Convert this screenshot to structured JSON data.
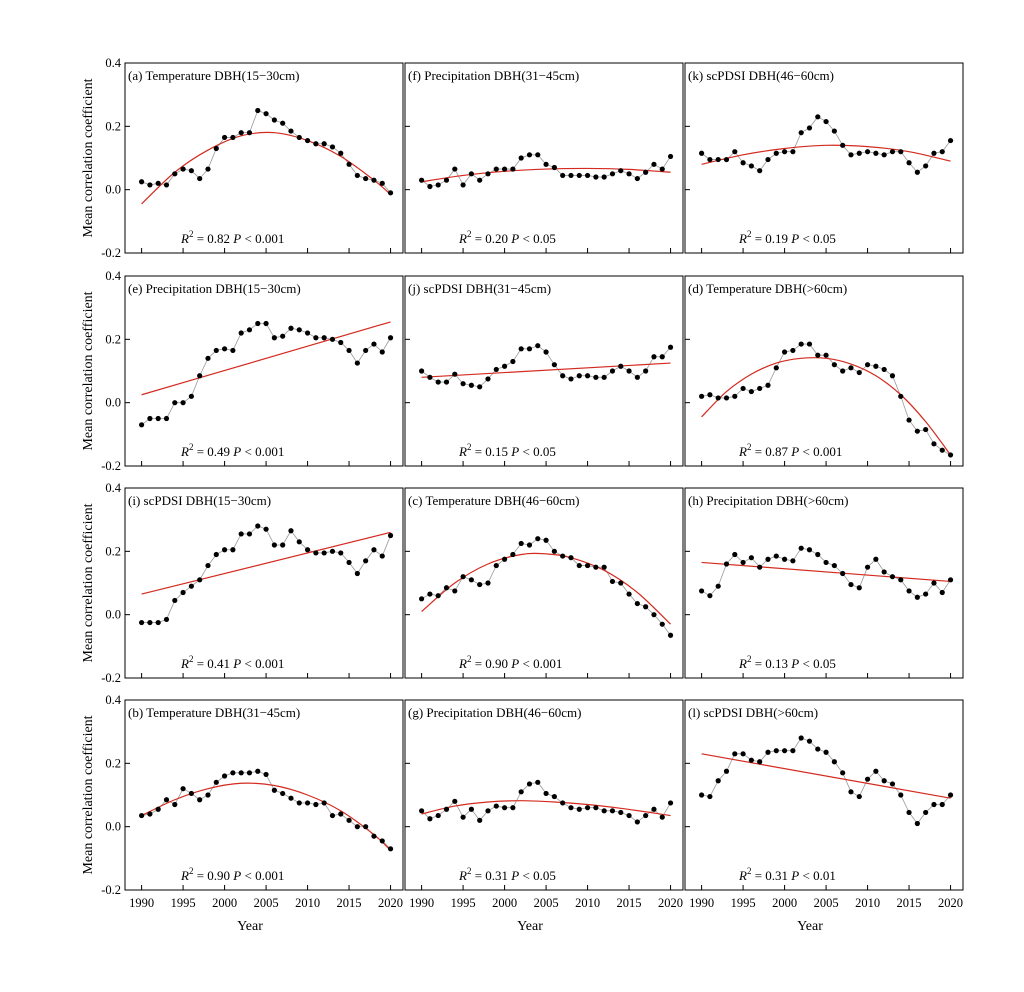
{
  "chart_data": {
    "type": "scatter",
    "layout": "4 rows x 3 columns grid of panels",
    "x_axis": {
      "label": "Year",
      "ticks": [
        1990,
        1995,
        2000,
        2005,
        2010,
        2015,
        2020
      ],
      "range": [
        1988,
        2021.5
      ]
    },
    "y_axis": {
      "label": "Mean correlation coefficient",
      "ticks": [
        -0.2,
        0.0,
        0.2,
        0.4
      ],
      "tick_labels": [
        "-0.2",
        "0.0",
        "0.2",
        "0.4"
      ],
      "range": [
        -0.2,
        0.4
      ]
    },
    "years": [
      1990,
      2020
    ],
    "colors": {
      "points": "#000000",
      "connector": "#9a9a9a",
      "fit_line": "#d42a1f"
    },
    "panels": [
      {
        "id": "a",
        "title": "(a) Temperature    DBH(15−30cm)",
        "fit_type": "quadratic",
        "r2_text": "R",
        "r2_value": " = 0.82",
        "p_text": "P < 0.001",
        "values": [
          0.025,
          0.015,
          0.02,
          0.015,
          0.05,
          0.065,
          0.06,
          0.035,
          0.065,
          0.13,
          0.165,
          0.165,
          0.18,
          0.18,
          0.25,
          0.24,
          0.22,
          0.21,
          0.185,
          0.165,
          0.155,
          0.145,
          0.145,
          0.135,
          0.115,
          0.08,
          0.045,
          0.035,
          0.03,
          0.02,
          -0.01
        ],
        "fit": [
          1990,
          -0.045,
          1994,
          0.055,
          1998,
          0.125,
          2002,
          0.17,
          2006,
          0.18,
          2010,
          0.155,
          2014,
          0.105,
          2018,
          0.03,
          2020,
          -0.015
        ]
      },
      {
        "id": "e",
        "title": "(e) Precipitation    DBH(15−30cm)",
        "fit_type": "linear",
        "r2_text": "R",
        "r2_value": " = 0.49",
        "p_text": "P < 0.001",
        "values": [
          -0.07,
          -0.05,
          -0.05,
          -0.05,
          0.0,
          0.0,
          0.02,
          0.085,
          0.14,
          0.165,
          0.17,
          0.165,
          0.22,
          0.23,
          0.25,
          0.25,
          0.205,
          0.21,
          0.235,
          0.23,
          0.22,
          0.205,
          0.205,
          0.2,
          0.19,
          0.165,
          0.125,
          0.165,
          0.185,
          0.16,
          0.205
        ],
        "fit": [
          1990,
          0.025,
          2020,
          0.255
        ]
      },
      {
        "id": "i",
        "title": "(i) scPDSI    DBH(15−30cm)",
        "fit_type": "linear",
        "r2_text": "R",
        "r2_value": " = 0.41",
        "p_text": "P < 0.001",
        "values": [
          -0.025,
          -0.025,
          -0.025,
          -0.015,
          0.045,
          0.07,
          0.09,
          0.11,
          0.155,
          0.19,
          0.205,
          0.205,
          0.255,
          0.255,
          0.28,
          0.27,
          0.22,
          0.22,
          0.265,
          0.23,
          0.205,
          0.195,
          0.195,
          0.2,
          0.195,
          0.165,
          0.13,
          0.17,
          0.205,
          0.185,
          0.25
        ],
        "fit": [
          1990,
          0.065,
          2020,
          0.26
        ]
      },
      {
        "id": "b",
        "title": "(b) Temperature    DBH(31−45cm)",
        "fit_type": "quadratic",
        "r2_text": "R",
        "r2_value": " = 0.90",
        "p_text": "P < 0.001",
        "values": [
          0.035,
          0.04,
          0.055,
          0.085,
          0.07,
          0.12,
          0.105,
          0.085,
          0.1,
          0.14,
          0.16,
          0.17,
          0.17,
          0.17,
          0.175,
          0.165,
          0.115,
          0.105,
          0.09,
          0.075,
          0.075,
          0.07,
          0.075,
          0.035,
          0.04,
          0.02,
          0.0,
          0.0,
          -0.03,
          -0.045,
          -0.07
        ],
        "fit": [
          1990,
          0.035,
          1994,
          0.085,
          1998,
          0.12,
          2002,
          0.137,
          2006,
          0.13,
          2010,
          0.1,
          2014,
          0.05,
          2018,
          -0.025,
          2020,
          -0.075
        ]
      },
      {
        "id": "f",
        "title": "(f) Precipitation    DBH(31−45cm)",
        "fit_type": "quadratic",
        "r2_text": "R",
        "r2_value": " = 0.20",
        "p_text": "P < 0.05",
        "values": [
          0.03,
          0.01,
          0.015,
          0.03,
          0.065,
          0.015,
          0.05,
          0.03,
          0.05,
          0.065,
          0.065,
          0.065,
          0.1,
          0.11,
          0.11,
          0.08,
          0.07,
          0.045,
          0.045,
          0.045,
          0.045,
          0.04,
          0.04,
          0.05,
          0.06,
          0.05,
          0.035,
          0.055,
          0.08,
          0.065,
          0.105
        ],
        "fit": [
          1990,
          0.025,
          1995,
          0.045,
          2000,
          0.058,
          2005,
          0.065,
          2010,
          0.067,
          2015,
          0.064,
          2020,
          0.055
        ]
      },
      {
        "id": "j",
        "title": "(j) scPDSI    DBH(31−45cm)",
        "fit_type": "linear",
        "r2_text": "R",
        "r2_value": " = 0.15",
        "p_text": "P < 0.05",
        "values": [
          0.1,
          0.08,
          0.065,
          0.065,
          0.09,
          0.06,
          0.055,
          0.05,
          0.075,
          0.105,
          0.115,
          0.13,
          0.17,
          0.17,
          0.18,
          0.16,
          0.12,
          0.085,
          0.075,
          0.085,
          0.085,
          0.08,
          0.08,
          0.1,
          0.115,
          0.1,
          0.08,
          0.1,
          0.145,
          0.145,
          0.175
        ],
        "fit": [
          1990,
          0.08,
          2020,
          0.125
        ]
      },
      {
        "id": "c",
        "title": "(c) Temperature    DBH(46−60cm)",
        "fit_type": "quadratic",
        "r2_text": "R",
        "r2_value": " = 0.90",
        "p_text": "P < 0.001",
        "values": [
          0.05,
          0.065,
          0.06,
          0.085,
          0.075,
          0.12,
          0.11,
          0.095,
          0.1,
          0.155,
          0.175,
          0.19,
          0.225,
          0.22,
          0.24,
          0.235,
          0.2,
          0.185,
          0.18,
          0.155,
          0.155,
          0.15,
          0.15,
          0.105,
          0.1,
          0.065,
          0.035,
          0.025,
          0.0,
          -0.03,
          -0.065
        ],
        "fit": [
          1990,
          0.01,
          1994,
          0.1,
          1998,
          0.16,
          2002,
          0.19,
          2005,
          0.192,
          2008,
          0.18,
          2012,
          0.14,
          2016,
          0.07,
          2020,
          -0.03
        ]
      },
      {
        "id": "g",
        "title": "(g) Precipitation    DBH(46−60cm)",
        "fit_type": "quadratic",
        "r2_text": "R",
        "r2_value": " = 0.31",
        "p_text": "P < 0.05",
        "values": [
          0.05,
          0.025,
          0.035,
          0.055,
          0.08,
          0.03,
          0.055,
          0.02,
          0.05,
          0.065,
          0.06,
          0.06,
          0.11,
          0.135,
          0.14,
          0.105,
          0.095,
          0.075,
          0.06,
          0.055,
          0.06,
          0.06,
          0.05,
          0.05,
          0.045,
          0.035,
          0.015,
          0.035,
          0.055,
          0.03,
          0.075
        ],
        "fit": [
          1990,
          0.04,
          1994,
          0.065,
          1998,
          0.078,
          2002,
          0.082,
          2006,
          0.078,
          2010,
          0.07,
          2014,
          0.058,
          2018,
          0.043,
          2020,
          0.035
        ]
      },
      {
        "id": "k",
        "title": "(k) scPDSI    DBH(46−60cm)",
        "fit_type": "quadratic",
        "r2_text": "R",
        "r2_value": " = 0.19",
        "p_text": "P < 0.05",
        "values": [
          0.115,
          0.095,
          0.095,
          0.095,
          0.12,
          0.085,
          0.075,
          0.06,
          0.095,
          0.115,
          0.12,
          0.12,
          0.18,
          0.195,
          0.23,
          0.215,
          0.185,
          0.14,
          0.11,
          0.115,
          0.12,
          0.115,
          0.11,
          0.12,
          0.12,
          0.085,
          0.055,
          0.075,
          0.115,
          0.12,
          0.155
        ],
        "fit": [
          1990,
          0.08,
          1995,
          0.11,
          2000,
          0.13,
          2005,
          0.14,
          2010,
          0.136,
          2015,
          0.12,
          2020,
          0.09
        ]
      },
      {
        "id": "d",
        "title": "(d) Temperature    DBH(>60cm)",
        "fit_type": "quadratic",
        "r2_text": "R",
        "r2_value": " = 0.87",
        "p_text": "P < 0.001",
        "values": [
          0.02,
          0.025,
          0.015,
          0.015,
          0.02,
          0.045,
          0.035,
          0.045,
          0.055,
          0.11,
          0.16,
          0.165,
          0.185,
          0.185,
          0.15,
          0.15,
          0.12,
          0.1,
          0.11,
          0.095,
          0.12,
          0.115,
          0.105,
          0.085,
          0.02,
          -0.055,
          -0.09,
          -0.085,
          -0.13,
          -0.15,
          -0.165
        ],
        "fit": [
          1990,
          -0.045,
          1993,
          0.035,
          1996,
          0.09,
          1999,
          0.125,
          2002,
          0.14,
          2005,
          0.14,
          2008,
          0.122,
          2011,
          0.085,
          2014,
          0.025,
          2017,
          -0.06,
          2020,
          -0.165
        ]
      },
      {
        "id": "h",
        "title": "(h) Precipitation    DBH(>60cm)",
        "fit_type": "linear",
        "r2_text": "R",
        "r2_value": " = 0.13",
        "p_text": "P < 0.05",
        "values": [
          0.075,
          0.06,
          0.09,
          0.16,
          0.19,
          0.165,
          0.18,
          0.15,
          0.175,
          0.185,
          0.175,
          0.17,
          0.21,
          0.205,
          0.19,
          0.165,
          0.155,
          0.13,
          0.095,
          0.085,
          0.15,
          0.175,
          0.135,
          0.12,
          0.11,
          0.075,
          0.055,
          0.065,
          0.1,
          0.07,
          0.11
        ],
        "fit": [
          1990,
          0.165,
          2020,
          0.105
        ]
      },
      {
        "id": "l",
        "title": "(l) scPDSI    DBH(>60cm)",
        "fit_type": "linear",
        "r2_text": "R",
        "r2_value": " = 0.31",
        "p_text": "P < 0.01",
        "values": [
          0.1,
          0.095,
          0.145,
          0.175,
          0.23,
          0.23,
          0.21,
          0.205,
          0.235,
          0.24,
          0.24,
          0.24,
          0.28,
          0.27,
          0.245,
          0.235,
          0.205,
          0.17,
          0.11,
          0.095,
          0.15,
          0.175,
          0.145,
          0.135,
          0.1,
          0.045,
          0.01,
          0.045,
          0.07,
          0.07,
          0.1
        ],
        "fit": [
          1990,
          0.23,
          2020,
          0.09
        ]
      }
    ]
  }
}
